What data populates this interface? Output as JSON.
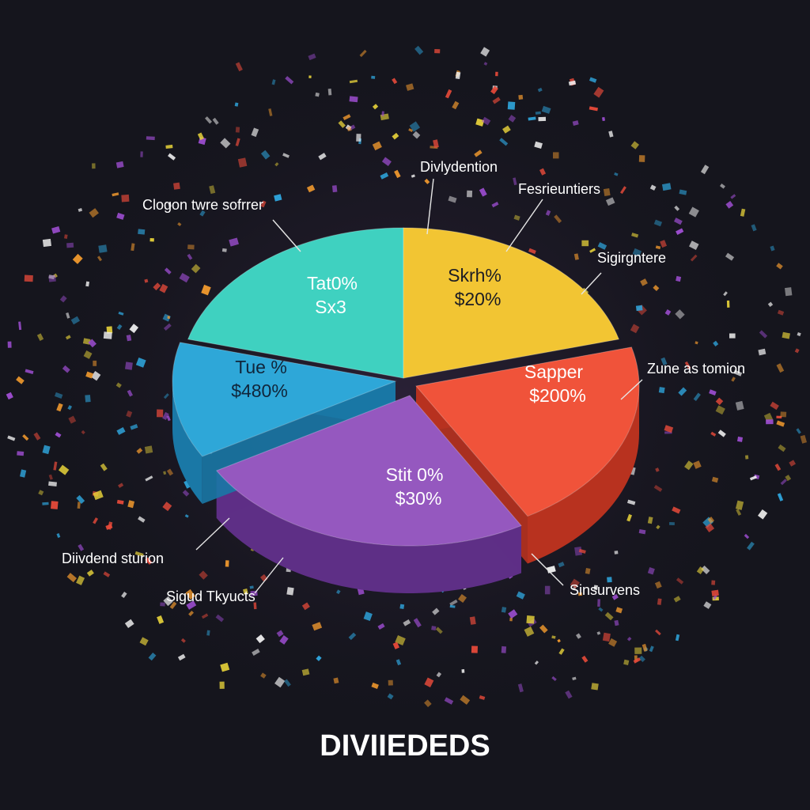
{
  "chart_data": {
    "type": "pie",
    "title": "DIVIIEDEDS",
    "slices": [
      {
        "inner_label": "Tat0%",
        "inner_value": "Sx3",
        "color": "#3fd1c0",
        "side": "#21998c"
      },
      {
        "inner_label": "Skrh%",
        "inner_value": "$20%",
        "color": "#f2c533",
        "side": "#c99a1a"
      },
      {
        "inner_label": "Sapper",
        "inner_value": "$200%",
        "color": "#f0533a",
        "side": "#b8321f"
      },
      {
        "inner_label": "Stit 0%",
        "inner_value": "$30%",
        "color": "#9558bf",
        "side": "#5e2f86"
      },
      {
        "inner_label": "Tue %",
        "inner_value": "$480%",
        "color": "#2ea7d8",
        "side": "#1a78a6"
      }
    ],
    "callouts": [
      "Clogon twre sofrrer",
      "Divlydention",
      "Fesrieuntiers",
      "Sigirgntere",
      "Zune as tomion",
      "Sinsurvens",
      "Diivdend sturion",
      "Sigud Tkyucts"
    ]
  },
  "palette": {
    "background": "#15151d",
    "confetti": [
      "#e8d33a",
      "#e84a3a",
      "#2fa8e0",
      "#a14fd6",
      "#f2f2f2",
      "#f29a2e"
    ]
  }
}
